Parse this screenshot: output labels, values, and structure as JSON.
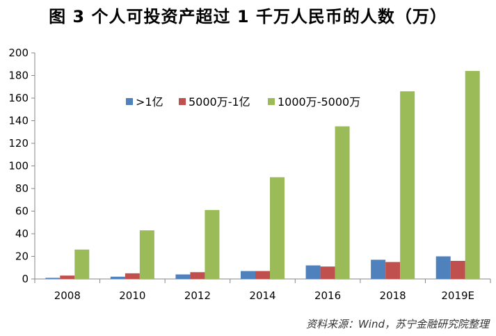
{
  "title": "图 3  个人可投资产超过 1 千万人民币的人数（万）",
  "source": "资料来源：Wind，苏宁金融研究院整理",
  "chart_data": {
    "type": "bar",
    "title": "图 3  个人可投资产超过 1 千万人民币的人数（万）",
    "categories": [
      "2008",
      "2010",
      "2012",
      "2014",
      "2016",
      "2018",
      "2019E"
    ],
    "series": [
      {
        "name": ">1亿",
        "color": "#4F81BD",
        "values": [
          1,
          2,
          4,
          7,
          12,
          17,
          20
        ]
      },
      {
        "name": "5000万-1亿",
        "color": "#C0504D",
        "values": [
          3,
          5,
          6,
          7,
          11,
          15,
          16
        ]
      },
      {
        "name": "1000万-5000万",
        "color": "#9BBB59",
        "values": [
          26,
          43,
          61,
          90,
          135,
          166,
          184
        ]
      }
    ],
    "ylim": [
      0,
      200
    ],
    "yticks": [
      0,
      20,
      40,
      60,
      80,
      100,
      120,
      140,
      160,
      180,
      200
    ],
    "grid": false,
    "legend": "top-center"
  }
}
